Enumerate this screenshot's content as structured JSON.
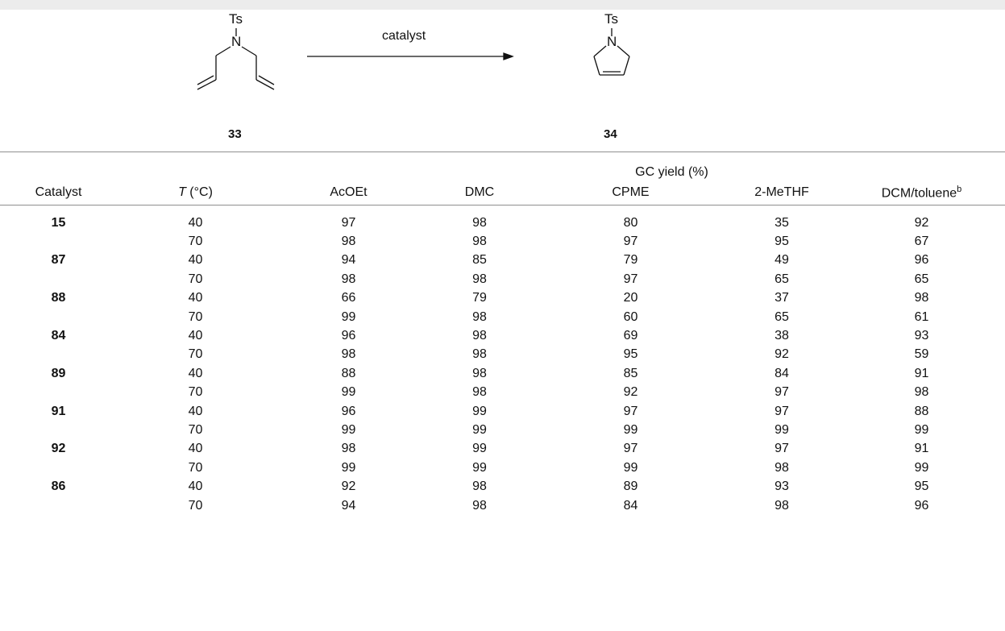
{
  "scheme": {
    "reactant": {
      "label": "33",
      "group": "Ts",
      "atom": "N"
    },
    "product": {
      "label": "34",
      "group": "Ts",
      "atom": "N"
    },
    "arrow_label": "catalyst"
  },
  "table": {
    "span_header": "GC yield (%)",
    "headers": {
      "catalyst": "Catalyst",
      "t_italic": "T",
      "t_unit": " (°C)",
      "c1": "AcOEt",
      "c2": "DMC",
      "c3": "CPME",
      "c4": "2-MeTHF",
      "c5": "DCM/toluene",
      "c5_sup": "b"
    },
    "rows": [
      {
        "catalyst": "15",
        "t": "40",
        "v": [
          "97",
          "98",
          "80",
          "35",
          "92"
        ]
      },
      {
        "catalyst": "",
        "t": "70",
        "v": [
          "98",
          "98",
          "97",
          "95",
          "67"
        ]
      },
      {
        "catalyst": "87",
        "t": "40",
        "v": [
          "94",
          "85",
          "79",
          "49",
          "96"
        ]
      },
      {
        "catalyst": "",
        "t": "70",
        "v": [
          "98",
          "98",
          "97",
          "65",
          "65"
        ]
      },
      {
        "catalyst": "88",
        "t": "40",
        "v": [
          "66",
          "79",
          "20",
          "37",
          "98"
        ]
      },
      {
        "catalyst": "",
        "t": "70",
        "v": [
          "99",
          "98",
          "60",
          "65",
          "61"
        ]
      },
      {
        "catalyst": "84",
        "t": "40",
        "v": [
          "96",
          "98",
          "69",
          "38",
          "93"
        ]
      },
      {
        "catalyst": "",
        "t": "70",
        "v": [
          "98",
          "98",
          "95",
          "92",
          "59"
        ]
      },
      {
        "catalyst": "89",
        "t": "40",
        "v": [
          "88",
          "98",
          "85",
          "84",
          "91"
        ]
      },
      {
        "catalyst": "",
        "t": "70",
        "v": [
          "99",
          "98",
          "92",
          "97",
          "98"
        ]
      },
      {
        "catalyst": "91",
        "t": "40",
        "v": [
          "96",
          "99",
          "97",
          "97",
          "88"
        ]
      },
      {
        "catalyst": "",
        "t": "70",
        "v": [
          "99",
          "99",
          "99",
          "99",
          "99"
        ]
      },
      {
        "catalyst": "92",
        "t": "40",
        "v": [
          "98",
          "99",
          "97",
          "97",
          "91"
        ]
      },
      {
        "catalyst": "",
        "t": "70",
        "v": [
          "99",
          "99",
          "99",
          "98",
          "99"
        ]
      },
      {
        "catalyst": "86",
        "t": "40",
        "v": [
          "92",
          "98",
          "89",
          "93",
          "95"
        ]
      },
      {
        "catalyst": "",
        "t": "70",
        "v": [
          "94",
          "98",
          "84",
          "98",
          "96"
        ]
      }
    ]
  }
}
